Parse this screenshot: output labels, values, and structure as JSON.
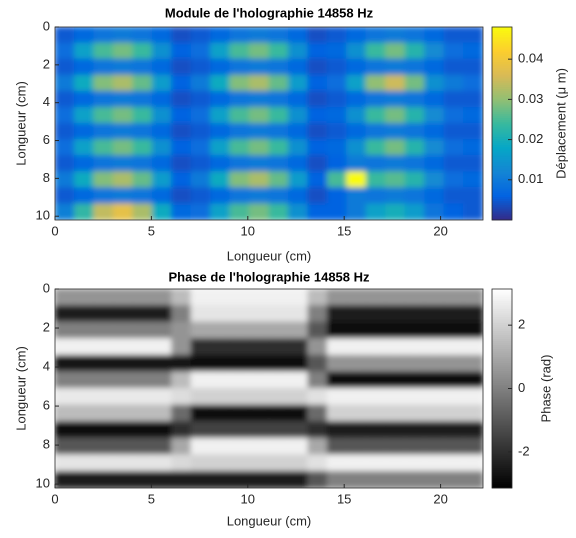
{
  "chart_data": [
    {
      "type": "heatmap",
      "title": "Module de l'holographie 14858 Hz",
      "x_label": "Longueur (cm)",
      "y_label": "Longueur (cm)",
      "colorbar_label": "Déplacement (μ m)",
      "colormap": "parula",
      "y_reversed": true,
      "xlim": [
        0,
        22.2
      ],
      "ylim": [
        0,
        10.2
      ],
      "xticks": [
        0,
        5,
        10,
        15,
        20
      ],
      "yticks": [
        0,
        2,
        4,
        6,
        8,
        10
      ],
      "clim": [
        0,
        0.048
      ],
      "cticks": [
        0.01,
        0.02,
        0.03,
        0.04
      ],
      "z": [
        [
          0.005,
          0.007,
          0.009,
          0.01,
          0.009,
          0.007,
          0.004,
          0.005,
          0.007,
          0.009,
          0.01,
          0.009,
          0.007,
          0.004,
          0.005,
          0.007,
          0.009,
          0.01,
          0.009,
          0.007,
          0.005,
          0.005
        ],
        [
          0.008,
          0.017,
          0.025,
          0.028,
          0.024,
          0.014,
          0.006,
          0.008,
          0.017,
          0.025,
          0.028,
          0.024,
          0.014,
          0.006,
          0.007,
          0.014,
          0.024,
          0.028,
          0.022,
          0.013,
          0.008,
          0.007
        ],
        [
          0.005,
          0.007,
          0.009,
          0.01,
          0.009,
          0.007,
          0.004,
          0.005,
          0.007,
          0.009,
          0.01,
          0.009,
          0.007,
          0.004,
          0.005,
          0.007,
          0.009,
          0.01,
          0.009,
          0.007,
          0.005,
          0.005
        ],
        [
          0.01,
          0.019,
          0.029,
          0.032,
          0.027,
          0.016,
          0.006,
          0.01,
          0.019,
          0.029,
          0.032,
          0.027,
          0.016,
          0.006,
          0.008,
          0.017,
          0.03,
          0.035,
          0.028,
          0.014,
          0.01,
          0.008
        ],
        [
          0.005,
          0.007,
          0.009,
          0.01,
          0.009,
          0.007,
          0.004,
          0.005,
          0.007,
          0.009,
          0.01,
          0.009,
          0.007,
          0.004,
          0.005,
          0.007,
          0.009,
          0.01,
          0.009,
          0.007,
          0.005,
          0.005
        ],
        [
          0.008,
          0.017,
          0.025,
          0.028,
          0.024,
          0.014,
          0.006,
          0.008,
          0.017,
          0.025,
          0.028,
          0.024,
          0.014,
          0.006,
          0.007,
          0.014,
          0.024,
          0.028,
          0.022,
          0.013,
          0.008,
          0.007
        ],
        [
          0.005,
          0.007,
          0.009,
          0.01,
          0.009,
          0.007,
          0.004,
          0.005,
          0.007,
          0.009,
          0.01,
          0.009,
          0.007,
          0.004,
          0.005,
          0.007,
          0.009,
          0.01,
          0.009,
          0.007,
          0.005,
          0.005
        ],
        [
          0.008,
          0.017,
          0.025,
          0.028,
          0.024,
          0.014,
          0.006,
          0.008,
          0.017,
          0.025,
          0.028,
          0.024,
          0.014,
          0.006,
          0.007,
          0.014,
          0.024,
          0.028,
          0.022,
          0.013,
          0.008,
          0.007
        ],
        [
          0.005,
          0.007,
          0.009,
          0.01,
          0.009,
          0.007,
          0.004,
          0.005,
          0.007,
          0.009,
          0.01,
          0.009,
          0.007,
          0.004,
          0.006,
          0.01,
          0.009,
          0.01,
          0.009,
          0.007,
          0.005,
          0.005
        ],
        [
          0.01,
          0.019,
          0.029,
          0.032,
          0.027,
          0.016,
          0.006,
          0.01,
          0.019,
          0.029,
          0.032,
          0.027,
          0.016,
          0.006,
          0.025,
          0.048,
          0.024,
          0.026,
          0.022,
          0.013,
          0.008,
          0.007
        ],
        [
          0.005,
          0.007,
          0.009,
          0.01,
          0.009,
          0.007,
          0.004,
          0.005,
          0.007,
          0.009,
          0.01,
          0.009,
          0.007,
          0.004,
          0.006,
          0.01,
          0.009,
          0.01,
          0.009,
          0.007,
          0.005,
          0.005
        ],
        [
          0.011,
          0.023,
          0.034,
          0.038,
          0.032,
          0.019,
          0.007,
          0.008,
          0.017,
          0.025,
          0.028,
          0.024,
          0.014,
          0.006,
          0.006,
          0.01,
          0.017,
          0.02,
          0.016,
          0.009,
          0.006,
          0.005
        ]
      ]
    },
    {
      "type": "heatmap",
      "title": "Phase de l'holographie 14858 Hz",
      "x_label": "Longueur (cm)",
      "y_label": "Longueur (cm)",
      "colorbar_label": "Phase (rad)",
      "colormap": "gray",
      "y_reversed": true,
      "xlim": [
        0,
        22.2
      ],
      "ylim": [
        0,
        10.2
      ],
      "xticks": [
        0,
        5,
        10,
        15,
        20
      ],
      "yticks": [
        0,
        2,
        4,
        6,
        8,
        10
      ],
      "clim": [
        -3.1416,
        3.1416
      ],
      "cticks": [
        -2,
        0,
        2
      ],
      "z": [
        [
          0.5,
          0.5,
          0.5,
          0.5,
          0.5,
          0.5,
          1.5,
          2.8,
          2.8,
          2.8,
          2.8,
          2.8,
          2.8,
          1.5,
          0.5,
          0.5,
          0.5,
          0.5,
          0.5,
          0.5,
          0.5,
          0.5
        ],
        [
          -2.5,
          -2.5,
          -2.5,
          -2.5,
          -2.5,
          -2.5,
          0.0,
          2.5,
          2.5,
          2.5,
          2.5,
          2.5,
          2.5,
          0.0,
          -2.5,
          -2.5,
          -2.5,
          -2.5,
          -2.5,
          -2.5,
          -2.5,
          -2.5
        ],
        [
          0.0,
          0.0,
          0.0,
          0.0,
          0.0,
          0.0,
          0.5,
          1.0,
          1.0,
          1.0,
          1.0,
          1.0,
          1.0,
          -1.0,
          -2.8,
          -2.8,
          -2.8,
          -2.8,
          -2.8,
          -2.8,
          -2.8,
          -2.8
        ],
        [
          2.8,
          2.8,
          2.8,
          2.8,
          2.8,
          2.8,
          0.5,
          -2.0,
          -2.0,
          -2.0,
          -2.0,
          -2.0,
          -2.0,
          0.5,
          2.8,
          2.8,
          2.8,
          2.8,
          2.8,
          2.8,
          2.8,
          2.8
        ],
        [
          -2.6,
          -2.6,
          -2.6,
          -2.6,
          -2.6,
          -2.6,
          -2.7,
          -2.8,
          -2.8,
          -2.8,
          -2.8,
          -2.8,
          -2.8,
          -1.0,
          0.5,
          0.5,
          0.5,
          0.5,
          0.5,
          0.5,
          0.5,
          0.5
        ],
        [
          0.0,
          0.0,
          0.0,
          0.0,
          0.0,
          0.0,
          1.5,
          2.8,
          2.8,
          2.8,
          2.8,
          2.8,
          2.8,
          0.0,
          -2.8,
          -2.8,
          -2.8,
          -2.8,
          -2.8,
          -2.8,
          -2.8,
          -2.8
        ],
        [
          2.6,
          2.6,
          2.6,
          2.6,
          2.6,
          2.6,
          2.3,
          2.0,
          2.0,
          2.0,
          2.0,
          2.0,
          2.0,
          2.4,
          2.8,
          2.8,
          2.8,
          2.8,
          2.8,
          2.8,
          2.8,
          2.8
        ],
        [
          1.5,
          1.5,
          1.5,
          1.5,
          1.5,
          1.5,
          -0.5,
          -2.8,
          -2.8,
          -2.8,
          -2.8,
          -2.8,
          -2.8,
          -0.5,
          2.0,
          2.0,
          2.0,
          2.0,
          2.0,
          2.0,
          2.0,
          2.0
        ],
        [
          -2.8,
          -2.8,
          -2.8,
          -2.8,
          -2.8,
          -2.8,
          -2.0,
          -1.5,
          -1.5,
          -1.5,
          -1.5,
          -1.5,
          -1.5,
          -2.0,
          -2.5,
          -2.5,
          -2.5,
          -2.5,
          -2.5,
          -2.5,
          -2.5,
          -2.5
        ],
        [
          -1.0,
          -1.0,
          -1.0,
          -1.0,
          -1.0,
          -1.0,
          1.0,
          2.8,
          2.8,
          2.8,
          2.8,
          2.8,
          2.8,
          1.0,
          -1.0,
          -1.0,
          -1.0,
          -1.0,
          -1.0,
          -1.0,
          -1.0,
          -1.0
        ],
        [
          2.5,
          2.5,
          2.5,
          2.5,
          2.5,
          2.5,
          2.2,
          2.0,
          2.0,
          2.0,
          2.0,
          2.0,
          2.0,
          2.4,
          2.8,
          2.8,
          2.8,
          2.8,
          2.8,
          2.8,
          2.8,
          2.8
        ],
        [
          -2.5,
          -2.5,
          -2.5,
          -2.5,
          -2.5,
          -2.5,
          -2.5,
          -2.5,
          -2.5,
          -2.5,
          -2.5,
          -2.5,
          -2.5,
          -1.0,
          0.0,
          0.0,
          0.0,
          0.0,
          0.0,
          0.0,
          0.0,
          0.0
        ]
      ]
    }
  ]
}
